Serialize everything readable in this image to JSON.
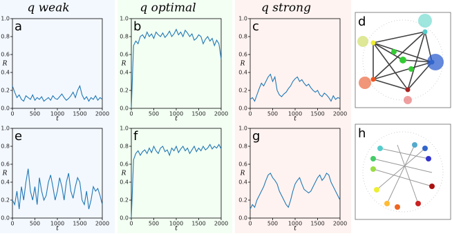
{
  "column_titles": [
    "q weak",
    "q optimal",
    "q strong"
  ],
  "network_panels": [
    "d",
    "h"
  ],
  "chart_data": [
    {
      "type": "line",
      "panel_label": "a",
      "column": 0,
      "row": 0,
      "xlabel": "t",
      "ylabel": "R",
      "color": "#1f77b4",
      "xlim": [
        0,
        2000
      ],
      "ylim": [
        0,
        1
      ],
      "xticks": [
        0,
        500,
        1000,
        1500,
        2000
      ],
      "yticks": [
        {
          "value": 0,
          "label": "0.0"
        },
        {
          "value": 0.2,
          "label": "0.2"
        },
        {
          "value": 0.4,
          "label": "0.4"
        },
        {
          "value": 0.6,
          "label": "0.6"
        },
        {
          "value": 0.8,
          "label": "0.8"
        },
        {
          "value": 1,
          "label": "1.0"
        }
      ],
      "x": [
        0,
        50,
        100,
        150,
        200,
        250,
        300,
        350,
        400,
        450,
        500,
        550,
        600,
        650,
        700,
        750,
        800,
        850,
        900,
        950,
        1000,
        1050,
        1100,
        1150,
        1200,
        1250,
        1300,
        1350,
        1400,
        1450,
        1500,
        1550,
        1600,
        1650,
        1700,
        1750,
        1800,
        1850,
        1900,
        1950,
        2000
      ],
      "values": [
        0.25,
        0.18,
        0.12,
        0.15,
        0.1,
        0.08,
        0.14,
        0.12,
        0.1,
        0.15,
        0.09,
        0.12,
        0.1,
        0.13,
        0.08,
        0.1,
        0.12,
        0.09,
        0.14,
        0.11,
        0.1,
        0.13,
        0.16,
        0.12,
        0.09,
        0.11,
        0.14,
        0.18,
        0.12,
        0.2,
        0.25,
        0.15,
        0.1,
        0.13,
        0.08,
        0.12,
        0.1,
        0.14,
        0.09,
        0.12,
        0.1
      ]
    },
    {
      "type": "line",
      "panel_label": "b",
      "column": 1,
      "row": 0,
      "xlabel": "t",
      "ylabel": "R",
      "color": "#1f77b4",
      "xlim": [
        0,
        2000
      ],
      "ylim": [
        0,
        1
      ],
      "xticks": [
        0,
        500,
        1000,
        1500,
        2000
      ],
      "yticks": [
        {
          "value": 0,
          "label": "0.0"
        },
        {
          "value": 0.2,
          "label": "0.2"
        },
        {
          "value": 0.4,
          "label": "0.4"
        },
        {
          "value": 0.6,
          "label": "0.6"
        },
        {
          "value": 0.8,
          "label": "0.8"
        },
        {
          "value": 1,
          "label": "1.0"
        }
      ],
      "x": [
        0,
        50,
        100,
        150,
        200,
        250,
        300,
        350,
        400,
        450,
        500,
        550,
        600,
        650,
        700,
        750,
        800,
        850,
        900,
        950,
        1000,
        1050,
        1100,
        1150,
        1200,
        1250,
        1300,
        1350,
        1400,
        1450,
        1500,
        1550,
        1600,
        1650,
        1700,
        1750,
        1800,
        1850,
        1900,
        1950,
        2000
      ],
      "values": [
        0,
        0.7,
        0.75,
        0.72,
        0.8,
        0.82,
        0.78,
        0.85,
        0.8,
        0.83,
        0.78,
        0.85,
        0.82,
        0.8,
        0.84,
        0.79,
        0.82,
        0.86,
        0.8,
        0.83,
        0.88,
        0.82,
        0.85,
        0.8,
        0.87,
        0.84,
        0.8,
        0.83,
        0.76,
        0.78,
        0.82,
        0.8,
        0.72,
        0.77,
        0.8,
        0.75,
        0.78,
        0.7,
        0.76,
        0.72,
        0.55
      ]
    },
    {
      "type": "line",
      "panel_label": "c",
      "column": 2,
      "row": 0,
      "xlabel": "t",
      "ylabel": "R",
      "color": "#1f77b4",
      "xlim": [
        0,
        2000
      ],
      "ylim": [
        0,
        1
      ],
      "xticks": [
        0,
        500,
        1000,
        1500,
        2000
      ],
      "yticks": [
        {
          "value": 0,
          "label": "0.0"
        },
        {
          "value": 0.2,
          "label": "0.2"
        },
        {
          "value": 0.4,
          "label": "0.4"
        },
        {
          "value": 0.6,
          "label": "0.6"
        },
        {
          "value": 0.8,
          "label": "0.8"
        },
        {
          "value": 1,
          "label": "1.0"
        }
      ],
      "x": [
        0,
        50,
        100,
        150,
        200,
        250,
        300,
        350,
        400,
        450,
        500,
        550,
        600,
        650,
        700,
        750,
        800,
        850,
        900,
        950,
        1000,
        1050,
        1100,
        1150,
        1200,
        1250,
        1300,
        1350,
        1400,
        1450,
        1500,
        1550,
        1600,
        1650,
        1700,
        1750,
        1800,
        1850,
        1900,
        1950,
        2000
      ],
      "values": [
        0.1,
        0.12,
        0.08,
        0.15,
        0.22,
        0.28,
        0.25,
        0.3,
        0.35,
        0.38,
        0.3,
        0.35,
        0.2,
        0.15,
        0.13,
        0.16,
        0.18,
        0.22,
        0.25,
        0.3,
        0.33,
        0.35,
        0.3,
        0.32,
        0.28,
        0.25,
        0.27,
        0.23,
        0.2,
        0.18,
        0.2,
        0.15,
        0.13,
        0.17,
        0.15,
        0.12,
        0.08,
        0.14,
        0.1,
        0.12,
        0.11
      ]
    },
    {
      "type": "line",
      "panel_label": "e",
      "column": 0,
      "row": 1,
      "xlabel": "t",
      "ylabel": "R",
      "color": "#1f77b4",
      "xlim": [
        0,
        2000
      ],
      "ylim": [
        0,
        1
      ],
      "xticks": [
        0,
        500,
        1000,
        1500,
        2000
      ],
      "yticks": [
        {
          "value": 0,
          "label": "0.0"
        },
        {
          "value": 0.2,
          "label": "0.2"
        },
        {
          "value": 0.4,
          "label": "0.4"
        },
        {
          "value": 0.6,
          "label": "0.6"
        },
        {
          "value": 0.8,
          "label": "0.8"
        },
        {
          "value": 1,
          "label": "1.0"
        }
      ],
      "x": [
        0,
        50,
        100,
        150,
        200,
        250,
        300,
        350,
        400,
        450,
        500,
        550,
        600,
        650,
        700,
        750,
        800,
        850,
        900,
        950,
        1000,
        1050,
        1100,
        1150,
        1200,
        1250,
        1300,
        1350,
        1400,
        1450,
        1500,
        1550,
        1600,
        1650,
        1700,
        1750,
        1800,
        1850,
        1900,
        1950,
        2000
      ],
      "values": [
        0.2,
        0.15,
        0.3,
        0.1,
        0.35,
        0.2,
        0.4,
        0.55,
        0.3,
        0.2,
        0.35,
        0.15,
        0.45,
        0.3,
        0.2,
        0.25,
        0.4,
        0.48,
        0.35,
        0.2,
        0.3,
        0.45,
        0.35,
        0.2,
        0.4,
        0.5,
        0.3,
        0.22,
        0.35,
        0.45,
        0.4,
        0.2,
        0.15,
        0.3,
        0.1,
        0.2,
        0.35,
        0.3,
        0.33,
        0.25,
        0.15
      ]
    },
    {
      "type": "line",
      "panel_label": "f",
      "column": 1,
      "row": 1,
      "xlabel": "t",
      "ylabel": "R",
      "color": "#1f77b4",
      "xlim": [
        0,
        2000
      ],
      "ylim": [
        0,
        1
      ],
      "xticks": [
        0,
        500,
        1000,
        1500,
        2000
      ],
      "yticks": [
        {
          "value": 0,
          "label": "0.0"
        },
        {
          "value": 0.2,
          "label": "0.2"
        },
        {
          "value": 0.4,
          "label": "0.4"
        },
        {
          "value": 0.6,
          "label": "0.6"
        },
        {
          "value": 0.8,
          "label": "0.8"
        },
        {
          "value": 1,
          "label": "1.0"
        }
      ],
      "x": [
        0,
        50,
        100,
        150,
        200,
        250,
        300,
        350,
        400,
        450,
        500,
        550,
        600,
        650,
        700,
        750,
        800,
        850,
        900,
        950,
        1000,
        1050,
        1100,
        1150,
        1200,
        1250,
        1300,
        1350,
        1400,
        1450,
        1500,
        1550,
        1600,
        1650,
        1700,
        1750,
        1800,
        1850,
        1900,
        1950,
        2000
      ],
      "values": [
        0,
        0.65,
        0.72,
        0.75,
        0.7,
        0.74,
        0.76,
        0.72,
        0.78,
        0.73,
        0.8,
        0.75,
        0.72,
        0.78,
        0.8,
        0.74,
        0.76,
        0.7,
        0.78,
        0.75,
        0.8,
        0.73,
        0.77,
        0.8,
        0.75,
        0.78,
        0.72,
        0.76,
        0.8,
        0.74,
        0.78,
        0.75,
        0.8,
        0.76,
        0.78,
        0.82,
        0.77,
        0.8,
        0.78,
        0.82,
        0.77
      ]
    },
    {
      "type": "line",
      "panel_label": "g",
      "column": 2,
      "row": 1,
      "xlabel": "t",
      "ylabel": "R",
      "color": "#1f77b4",
      "xlim": [
        0,
        2000
      ],
      "ylim": [
        0,
        1
      ],
      "xticks": [
        0,
        500,
        1000,
        1500,
        2000
      ],
      "yticks": [
        {
          "value": 0,
          "label": "0.0"
        },
        {
          "value": 0.2,
          "label": "0.2"
        },
        {
          "value": 0.4,
          "label": "0.4"
        },
        {
          "value": 0.6,
          "label": "0.6"
        },
        {
          "value": 0.8,
          "label": "0.8"
        },
        {
          "value": 1,
          "label": "1.0"
        }
      ],
      "x": [
        0,
        50,
        100,
        150,
        200,
        250,
        300,
        350,
        400,
        450,
        500,
        550,
        600,
        650,
        700,
        750,
        800,
        850,
        900,
        950,
        1000,
        1050,
        1100,
        1150,
        1200,
        1250,
        1300,
        1350,
        1400,
        1450,
        1500,
        1550,
        1600,
        1650,
        1700,
        1750,
        1800,
        1850,
        1900,
        1950,
        2000
      ],
      "values": [
        0.1,
        0.15,
        0.12,
        0.2,
        0.25,
        0.3,
        0.35,
        0.42,
        0.48,
        0.5,
        0.45,
        0.42,
        0.38,
        0.3,
        0.25,
        0.2,
        0.15,
        0.12,
        0.2,
        0.3,
        0.38,
        0.42,
        0.45,
        0.38,
        0.32,
        0.3,
        0.28,
        0.3,
        0.35,
        0.4,
        0.45,
        0.48,
        0.42,
        0.45,
        0.5,
        0.48,
        0.4,
        0.35,
        0.3,
        0.25,
        0.2
      ]
    }
  ]
}
